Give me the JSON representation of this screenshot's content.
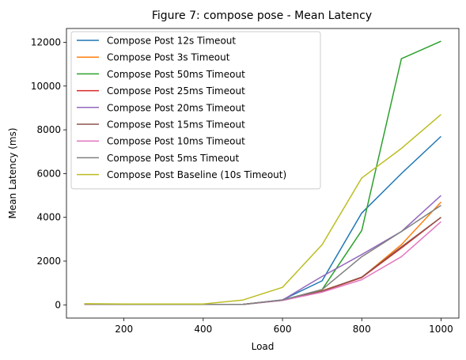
{
  "chart_data": {
    "type": "line",
    "title": "Figure 7: compose pose - Mean Latency",
    "xlabel": "Load",
    "ylabel": "Mean Latency (ms)",
    "xlim": [
      55,
      1045
    ],
    "ylim": [
      -604,
      12632
    ],
    "xticks": [
      200,
      400,
      600,
      800,
      1000
    ],
    "yticks": [
      0,
      2000,
      4000,
      6000,
      8000,
      10000,
      12000
    ],
    "grid": false,
    "legend_position": "top-left",
    "x": [
      100,
      200,
      300,
      400,
      500,
      600,
      700,
      800,
      900,
      1000
    ],
    "series": [
      {
        "name": "Compose Post 12s Timeout",
        "color": "#1f77b4",
        "values": [
          30,
          20,
          20,
          20,
          20,
          230,
          1100,
          4200,
          6000,
          7700
        ]
      },
      {
        "name": "Compose Post 3s Timeout",
        "color": "#ff7f0e",
        "values": [
          30,
          20,
          20,
          20,
          20,
          220,
          650,
          1250,
          2750,
          4700
        ]
      },
      {
        "name": "Compose Post 50ms Timeout",
        "color": "#2ca02c",
        "values": [
          30,
          20,
          20,
          20,
          20,
          220,
          700,
          3400,
          11250,
          12050
        ]
      },
      {
        "name": "Compose Post 25ms Timeout",
        "color": "#d62728",
        "values": [
          30,
          20,
          20,
          20,
          20,
          210,
          620,
          1250,
          2600,
          4000
        ]
      },
      {
        "name": "Compose Post 20ms Timeout",
        "color": "#9467bd",
        "values": [
          30,
          20,
          20,
          20,
          20,
          220,
          1300,
          2300,
          3350,
          5000
        ]
      },
      {
        "name": "Compose Post 15ms Timeout",
        "color": "#8c564b",
        "values": [
          30,
          20,
          20,
          20,
          20,
          210,
          630,
          1270,
          2650,
          4000
        ]
      },
      {
        "name": "Compose Post 10ms Timeout",
        "color": "#e377c2",
        "values": [
          30,
          20,
          20,
          20,
          20,
          200,
          580,
          1150,
          2200,
          3800
        ]
      },
      {
        "name": "Compose Post 5ms Timeout",
        "color": "#7f7f7f",
        "values": [
          30,
          20,
          20,
          20,
          20,
          220,
          700,
          2200,
          3350,
          4550
        ]
      },
      {
        "name": "Compose Post Baseline (10s Timeout)",
        "color": "#bcbd22",
        "values": [
          50,
          40,
          40,
          40,
          220,
          800,
          2750,
          5800,
          7150,
          8700
        ]
      }
    ]
  }
}
